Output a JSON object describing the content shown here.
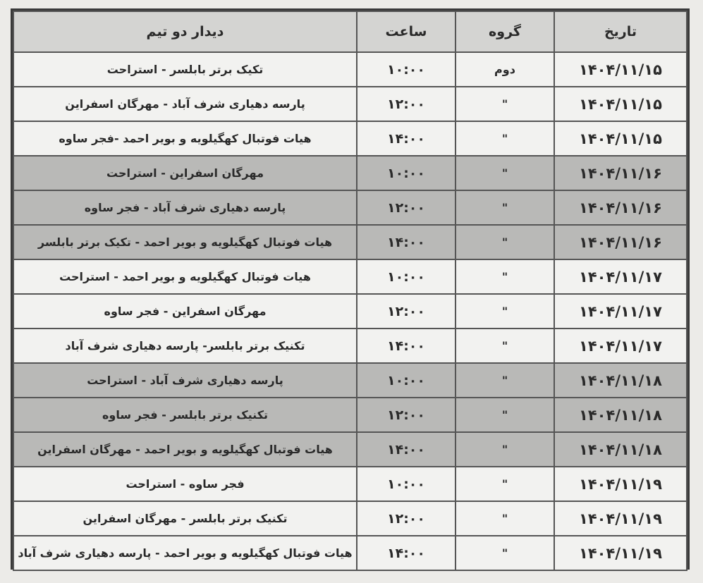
{
  "table": {
    "headers": {
      "date": "تاریخ",
      "group": "گروه",
      "time": "ساعت",
      "match": "دیدار دو تیم"
    },
    "rows": [
      {
        "date": "۱۴۰۴/۱۱/۱۵",
        "group": "دوم",
        "time": "۱۰:۰۰",
        "match": "تکیک برتر بابلسر - استراحت",
        "shaded": false
      },
      {
        "date": "۱۴۰۴/۱۱/۱۵",
        "group": "\"",
        "time": "۱۲:۰۰",
        "match": "پارسه دهیاری شرف آباد - مهرگان اسفراین",
        "shaded": false
      },
      {
        "date": "۱۴۰۴/۱۱/۱۵",
        "group": "\"",
        "time": "۱۴:۰۰",
        "match": "هیات فوتبال کهگیلویه و بویر احمد -فجر ساوه",
        "shaded": false
      },
      {
        "date": "۱۴۰۴/۱۱/۱۶",
        "group": "\"",
        "time": "۱۰:۰۰",
        "match": "مهرگان اسفراین - استراحت",
        "shaded": true
      },
      {
        "date": "۱۴۰۴/۱۱/۱۶",
        "group": "\"",
        "time": "۱۲:۰۰",
        "match": "پارسه دهیاری شرف آباد - فجر ساوه",
        "shaded": true
      },
      {
        "date": "۱۴۰۴/۱۱/۱۶",
        "group": "\"",
        "time": "۱۴:۰۰",
        "match": "هیات فوتبال کهگیلویه و بویر احمد - تکیک برتر بابلسر",
        "shaded": true
      },
      {
        "date": "۱۴۰۴/۱۱/۱۷",
        "group": "\"",
        "time": "۱۰:۰۰",
        "match": "هیات فوتبال کهگیلویه و بویر احمد - استراحت",
        "shaded": false
      },
      {
        "date": "۱۴۰۴/۱۱/۱۷",
        "group": "\"",
        "time": "۱۲:۰۰",
        "match": "مهرگان اسفراین - فجر ساوه",
        "shaded": false
      },
      {
        "date": "۱۴۰۴/۱۱/۱۷",
        "group": "\"",
        "time": "۱۴:۰۰",
        "match": "تکنیک برتر بابلسر- پارسه دهیاری شرف آباد",
        "shaded": false
      },
      {
        "date": "۱۴۰۴/۱۱/۱۸",
        "group": "\"",
        "time": "۱۰:۰۰",
        "match": "پارسه دهیاری شرف آباد - استراحت",
        "shaded": true
      },
      {
        "date": "۱۴۰۴/۱۱/۱۸",
        "group": "\"",
        "time": "۱۲:۰۰",
        "match": "تکنیک برتر بابلسر - فجر ساوه",
        "shaded": true
      },
      {
        "date": "۱۴۰۴/۱۱/۱۸",
        "group": "\"",
        "time": "۱۴:۰۰",
        "match": "هیات فوتبال کهگیلویه و بویر احمد - مهرگان اسفراین",
        "shaded": true
      },
      {
        "date": "۱۴۰۴/۱۱/۱۹",
        "group": "\"",
        "time": "۱۰:۰۰",
        "match": "فجر ساوه - استراحت",
        "shaded": false
      },
      {
        "date": "۱۴۰۴/۱۱/۱۹",
        "group": "\"",
        "time": "۱۲:۰۰",
        "match": "تکنیک برتر بابلسر - مهرگان اسفراین",
        "shaded": false
      },
      {
        "date": "۱۴۰۴/۱۱/۱۹",
        "group": "\"",
        "time": "۱۴:۰۰",
        "match": "هیات فوتبال کهگیلویه و بویر احمد - پارسه دهیاری شرف آباد",
        "shaded": false
      }
    ]
  }
}
